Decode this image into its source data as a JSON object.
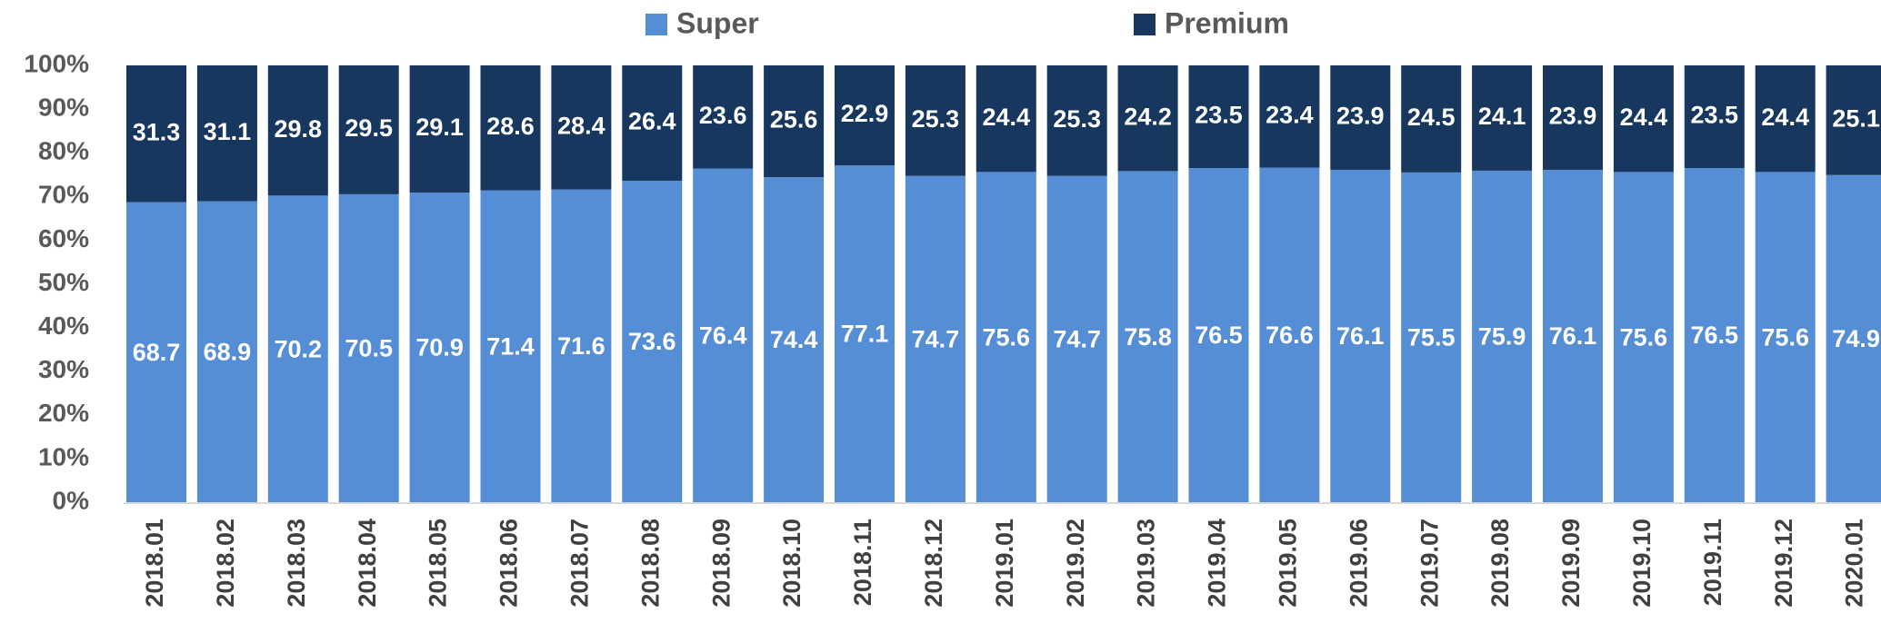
{
  "chart_data": {
    "type": "stacked_bar_100",
    "categories": [
      "2018.01",
      "2018.02",
      "2018.03",
      "2018.04",
      "2018.05",
      "2018.06",
      "2018.07",
      "2018.08",
      "2018.09",
      "2018.10",
      "2018.11",
      "2018.12",
      "2019.01",
      "2019.02",
      "2019.03",
      "2019.04",
      "2019.05",
      "2019.06",
      "2019.07",
      "2019.08",
      "2019.09",
      "2019.10",
      "2019.11",
      "2019.12",
      "2020.01"
    ],
    "series": [
      {
        "name": "Super",
        "color": "#558ed5",
        "values": [
          68.7,
          68.9,
          70.2,
          70.5,
          70.9,
          71.4,
          71.6,
          73.6,
          76.4,
          74.4,
          77.1,
          74.7,
          75.6,
          74.7,
          75.8,
          76.5,
          76.6,
          76.1,
          75.5,
          75.9,
          76.1,
          75.6,
          76.5,
          75.6,
          74.9
        ]
      },
      {
        "name": "Premium",
        "color": "#17375e",
        "values": [
          31.3,
          31.1,
          29.8,
          29.5,
          29.1,
          28.6,
          28.4,
          26.4,
          23.6,
          25.6,
          22.9,
          25.3,
          24.4,
          25.3,
          24.2,
          23.5,
          23.4,
          23.9,
          24.5,
          24.1,
          23.9,
          24.4,
          23.5,
          24.4,
          25.1
        ]
      }
    ],
    "ylim": [
      0,
      100
    ],
    "yticks": [
      {
        "value": 0,
        "label": "0%"
      },
      {
        "value": 10,
        "label": "10%"
      },
      {
        "value": 20,
        "label": "20%"
      },
      {
        "value": 30,
        "label": "30%"
      },
      {
        "value": 40,
        "label": "40%"
      },
      {
        "value": 50,
        "label": "50%"
      },
      {
        "value": 60,
        "label": "60%"
      },
      {
        "value": 70,
        "label": "70%"
      },
      {
        "value": 80,
        "label": "80%"
      },
      {
        "value": 90,
        "label": "90%"
      },
      {
        "value": 100,
        "label": "100%"
      }
    ],
    "legend": "top"
  }
}
